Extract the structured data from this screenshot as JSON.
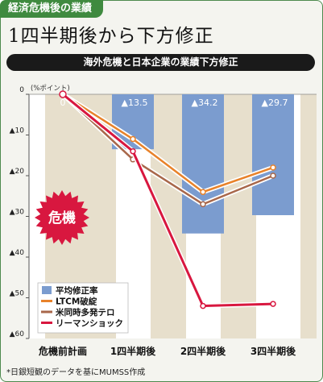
{
  "header": {
    "tag": "経済危機後の業績",
    "headline": "1四半期後から下方修正",
    "subtitle": "海外危機と日本企業の業績下方修正"
  },
  "badge": "危機",
  "source": "*日銀短観のデータを基にMUMSS作成",
  "chart_data": {
    "type": "bar+line",
    "categories": [
      "危機前計画",
      "1四半期後",
      "2四半期後",
      "3四半期後"
    ],
    "unit_label": "(%ポイント)",
    "ylim": [
      -60,
      0
    ],
    "y_ticks": [
      0,
      -10,
      -20,
      -30,
      -40,
      -50,
      -60
    ],
    "y_tick_labels": [
      "0",
      "▲10",
      "▲20",
      "▲30",
      "▲40",
      "▲50",
      "▲60"
    ],
    "grid": false,
    "legend_position": "bottom-left",
    "bar_series": {
      "name": "平均修正率",
      "color": "#7b9ccf",
      "values": [
        0,
        -13.5,
        -34.2,
        -29.7
      ],
      "labels": [
        "0",
        "▲13.5",
        "▲34.2",
        "▲29.7"
      ]
    },
    "line_series": [
      {
        "name": "LTCM破綻",
        "color": "#e8822a",
        "values": [
          0,
          -11,
          -24,
          -18
        ]
      },
      {
        "name": "米同時多発テロ",
        "color": "#a8674a",
        "values": [
          0,
          -16,
          -27,
          -20
        ]
      },
      {
        "name": "リーマンショック",
        "color": "#d8173f",
        "values": [
          0,
          -14,
          -52,
          -51.5
        ]
      }
    ]
  }
}
